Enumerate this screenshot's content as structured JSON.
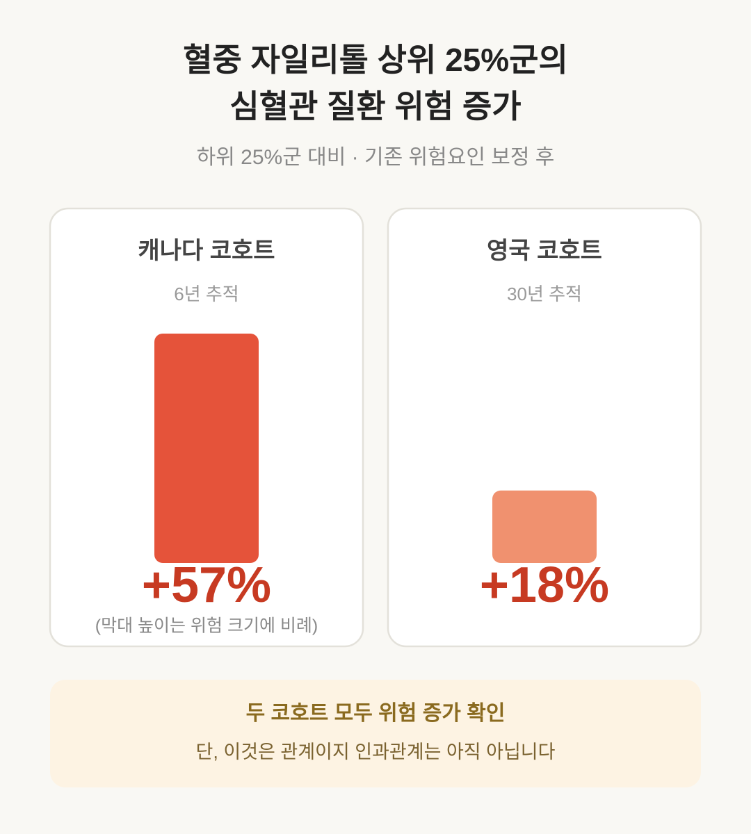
{
  "chart_data": {
    "type": "bar",
    "title": [
      "혈중 자일리톨 상위 25%군의",
      "심혈관 질환 위험 증가"
    ],
    "subtitle": "하위 25%군 대비 · 기존 위험요인 보정 후",
    "categories": [
      "캐나다 코호트",
      "영국 코호트"
    ],
    "category_notes": [
      "6년 추적",
      "30년 추적"
    ],
    "values": [
      57,
      18
    ],
    "value_labels": [
      "+57%",
      "+18%"
    ],
    "colors": [
      "#e5533a",
      "#f0916f"
    ],
    "note": "(막대 높이는 위험 크기에 비례)",
    "callout": {
      "title": "두 코호트 모두 위험 증가 확인",
      "text": "단, 이것은 관계이지 인과관계는 아직 아닙니다"
    }
  }
}
